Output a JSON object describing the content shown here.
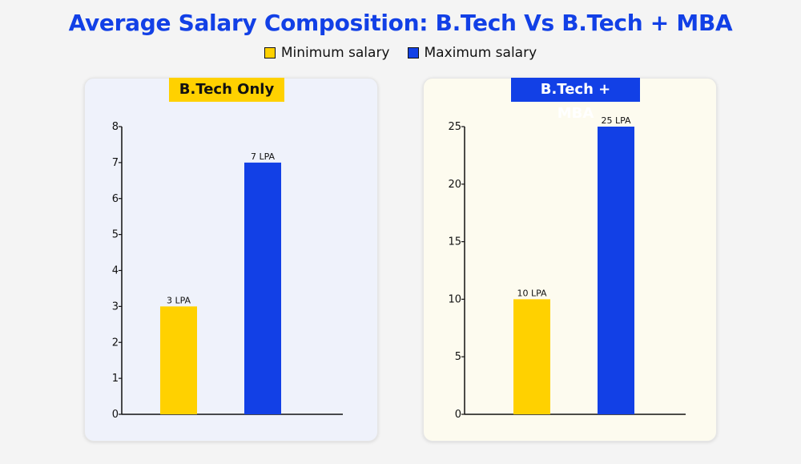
{
  "title": "Average Salary Composition: B.Tech Vs B.Tech + MBA",
  "legend": [
    {
      "label": "Minimum salary",
      "color": "#ffd100"
    },
    {
      "label": "Maximum salary",
      "color": "#1240e6"
    }
  ],
  "panels": [
    {
      "tag": "B.Tech Only",
      "tag_bg": "#ffd100",
      "tag_color": "#111111",
      "panel_bg": "#eff2fb"
    },
    {
      "tag": "B.Tech + MBA",
      "tag_bg": "#1240e6",
      "tag_color": "#ffffff",
      "panel_bg": "#fdfbef"
    }
  ],
  "chart_data": [
    {
      "type": "bar",
      "title": "B.Tech Only",
      "categories": [
        "Minimum salary",
        "Maximum salary"
      ],
      "values": [
        3,
        7
      ],
      "data_labels": [
        "3 LPA",
        "7 LPA"
      ],
      "colors": [
        "#ffd100",
        "#1240e6"
      ],
      "ylim": [
        0,
        8
      ],
      "yticks": [
        0,
        1,
        2,
        3,
        4,
        5,
        6,
        7,
        8
      ],
      "grid": false,
      "legend": "top-center"
    },
    {
      "type": "bar",
      "title": "B.Tech + MBA",
      "categories": [
        "Minimum salary",
        "Maximum salary"
      ],
      "values": [
        10,
        25
      ],
      "data_labels": [
        "10 LPA",
        "25 LPA"
      ],
      "colors": [
        "#ffd100",
        "#1240e6"
      ],
      "ylim": [
        0,
        25
      ],
      "yticks": [
        0,
        5,
        10,
        15,
        20,
        25
      ],
      "grid": false,
      "legend": "top-center"
    }
  ]
}
